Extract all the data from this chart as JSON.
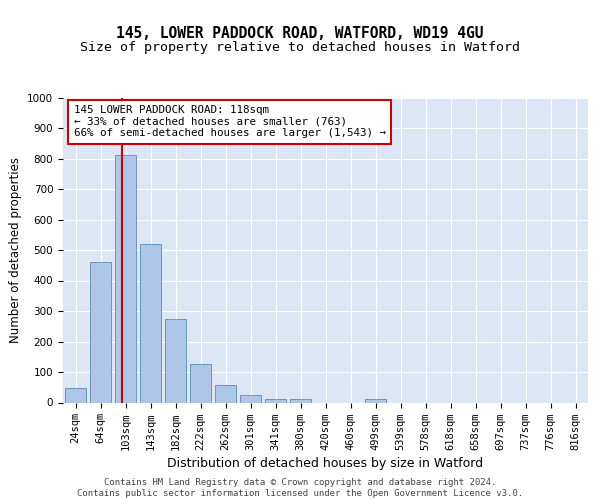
{
  "title1": "145, LOWER PADDOCK ROAD, WATFORD, WD19 4GU",
  "title2": "Size of property relative to detached houses in Watford",
  "xlabel": "Distribution of detached houses by size in Watford",
  "ylabel": "Number of detached properties",
  "categories": [
    "24sqm",
    "64sqm",
    "103sqm",
    "143sqm",
    "182sqm",
    "222sqm",
    "262sqm",
    "301sqm",
    "341sqm",
    "380sqm",
    "420sqm",
    "460sqm",
    "499sqm",
    "539sqm",
    "578sqm",
    "618sqm",
    "658sqm",
    "697sqm",
    "737sqm",
    "776sqm",
    "816sqm"
  ],
  "values": [
    46,
    462,
    810,
    521,
    275,
    126,
    57,
    25,
    11,
    13,
    0,
    0,
    10,
    0,
    0,
    0,
    0,
    0,
    0,
    0,
    0
  ],
  "bar_color": "#aec6e8",
  "bar_edge_color": "#5b8db8",
  "vline_x": 2.0,
  "vline_color": "#cc0000",
  "ylim": [
    0,
    1000
  ],
  "yticks": [
    0,
    100,
    200,
    300,
    400,
    500,
    600,
    700,
    800,
    900,
    1000
  ],
  "annotation_line1": "145 LOWER PADDOCK ROAD: 118sqm",
  "annotation_line2": "← 33% of detached houses are smaller (763)",
  "annotation_line3": "66% of semi-detached houses are larger (1,543) →",
  "annotation_box_facecolor": "#ffffff",
  "annotation_box_edgecolor": "#cc0000",
  "footer1": "Contains HM Land Registry data © Crown copyright and database right 2024.",
  "footer2": "Contains public sector information licensed under the Open Government Licence v3.0.",
  "background_color": "#dde6f5",
  "grid_color": "#ffffff",
  "title1_fontsize": 10.5,
  "title2_fontsize": 9.5,
  "xlabel_fontsize": 9,
  "ylabel_fontsize": 8.5,
  "tick_fontsize": 7.5,
  "annotation_fontsize": 7.8,
  "footer_fontsize": 6.5
}
